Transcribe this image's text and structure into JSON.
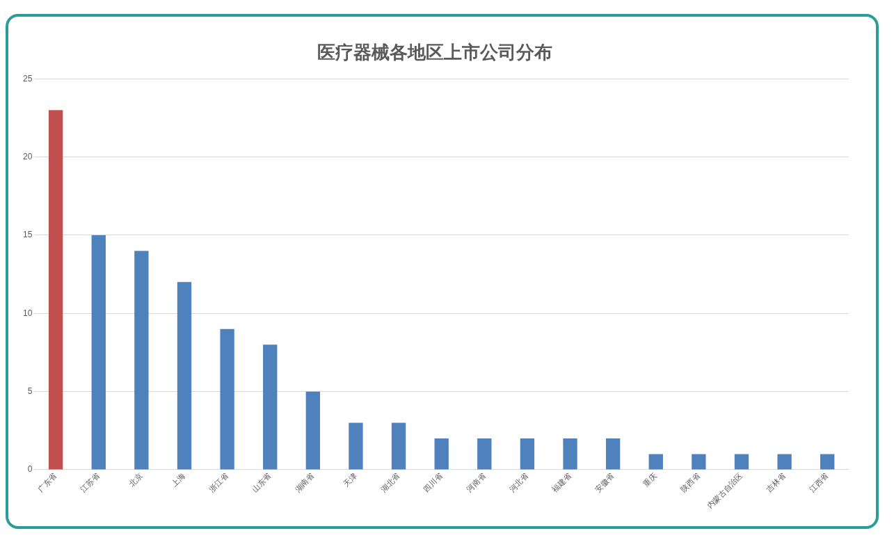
{
  "chart_data": {
    "type": "bar",
    "title": "医疗器械各地区上市公司分布",
    "categories": [
      "广东省",
      "江苏省",
      "北京",
      "上海",
      "浙江省",
      "山东省",
      "湖南省",
      "天津",
      "湖北省",
      "四川省",
      "河南省",
      "河北省",
      "福建省",
      "安徽省",
      "重庆",
      "陕西省",
      "内蒙古自治区",
      "吉林省",
      "江西省"
    ],
    "values": [
      23,
      15,
      14,
      12,
      9,
      8,
      5,
      3,
      3,
      2,
      2,
      2,
      2,
      2,
      1,
      1,
      1,
      1,
      1
    ],
    "colors": [
      "#c0504d",
      "#4f81bd",
      "#4f81bd",
      "#4f81bd",
      "#4f81bd",
      "#4f81bd",
      "#4f81bd",
      "#4f81bd",
      "#4f81bd",
      "#4f81bd",
      "#4f81bd",
      "#4f81bd",
      "#4f81bd",
      "#4f81bd",
      "#4f81bd",
      "#4f81bd",
      "#4f81bd",
      "#4f81bd",
      "#4f81bd"
    ],
    "ylim": [
      0,
      25
    ],
    "yticks": [
      0,
      5,
      10,
      15,
      20,
      25
    ],
    "grid": "y",
    "legend": false
  }
}
